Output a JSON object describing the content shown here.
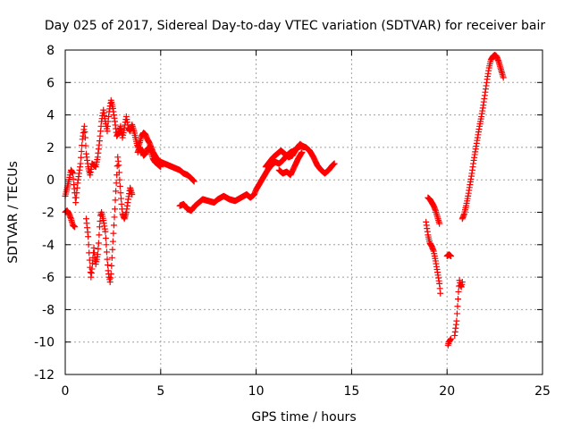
{
  "chart_data": {
    "type": "scatter",
    "title": "Day 025 of 2017, Sidereal Day-to-day VTEC variation (SDTVAR) for receiver bair",
    "xlabel": "GPS time / hours",
    "ylabel": "SDTVAR / TECUs",
    "xlim": [
      0,
      25
    ],
    "ylim": [
      -12,
      8
    ],
    "xticks": [
      0,
      5,
      10,
      15,
      20,
      25
    ],
    "yticks": [
      -12,
      -10,
      -8,
      -6,
      -4,
      -2,
      0,
      2,
      4,
      6,
      8
    ],
    "grid": true,
    "legend": "none",
    "marker": "plus",
    "series": [
      {
        "color": "#ff0000",
        "segments": [
          [
            [
              0.0,
              -1.0
            ],
            [
              0.1,
              -0.5
            ],
            [
              0.2,
              0.0
            ],
            [
              0.3,
              0.6
            ],
            [
              0.4,
              0.4
            ],
            [
              0.45,
              -0.3
            ],
            [
              0.5,
              -0.8
            ],
            [
              0.55,
              -1.4
            ],
            [
              0.6,
              -0.8
            ],
            [
              0.65,
              -0.2
            ],
            [
              0.7,
              0.2
            ],
            [
              0.8,
              1.0
            ],
            [
              0.9,
              2.5
            ],
            [
              1.0,
              3.3
            ],
            [
              1.05,
              2.6
            ],
            [
              1.1,
              1.6
            ],
            [
              1.2,
              0.8
            ],
            [
              1.3,
              0.3
            ],
            [
              1.4,
              1.0
            ],
            [
              1.5,
              0.9
            ],
            [
              1.6,
              0.8
            ],
            [
              1.7,
              1.4
            ],
            [
              1.8,
              2.4
            ],
            [
              1.9,
              3.6
            ],
            [
              2.0,
              4.3
            ],
            [
              2.1,
              3.6
            ],
            [
              2.2,
              3.0
            ],
            [
              2.3,
              4.2
            ],
            [
              2.4,
              4.9
            ],
            [
              2.5,
              4.4
            ],
            [
              2.6,
              3.6
            ],
            [
              2.7,
              2.7
            ],
            [
              2.8,
              2.9
            ],
            [
              2.9,
              3.3
            ],
            [
              3.0,
              2.6
            ],
            [
              3.1,
              3.2
            ],
            [
              3.2,
              3.9
            ],
            [
              3.3,
              3.2
            ],
            [
              3.4,
              3.0
            ],
            [
              3.5,
              3.4
            ],
            [
              3.6,
              3.0
            ],
            [
              3.7,
              2.5
            ],
            [
              3.8,
              2.0
            ],
            [
              3.9,
              2.3
            ],
            [
              4.0,
              2.7
            ],
            [
              4.1,
              2.9
            ],
            [
              4.2,
              2.8
            ],
            [
              4.3,
              2.5
            ],
            [
              4.4,
              2.3
            ],
            [
              4.5,
              2.0
            ],
            [
              4.6,
              1.7
            ],
            [
              4.7,
              1.5
            ],
            [
              4.8,
              1.3
            ],
            [
              5.0,
              1.1
            ],
            [
              5.2,
              1.0
            ],
            [
              5.4,
              0.9
            ],
            [
              5.6,
              0.8
            ],
            [
              5.8,
              0.7
            ],
            [
              6.0,
              0.6
            ],
            [
              6.2,
              0.4
            ],
            [
              6.4,
              0.3
            ],
            [
              6.6,
              0.1
            ],
            [
              6.75,
              -0.1
            ]
          ],
          [
            [
              0.0,
              -2.0
            ],
            [
              0.1,
              -1.9
            ],
            [
              0.2,
              -2.1
            ],
            [
              0.3,
              -2.4
            ],
            [
              0.4,
              -2.8
            ],
            [
              0.5,
              -2.9
            ]
          ],
          [
            [
              1.1,
              -2.4
            ],
            [
              1.2,
              -3.5
            ],
            [
              1.25,
              -4.5
            ],
            [
              1.3,
              -5.4
            ],
            [
              1.35,
              -6.0
            ],
            [
              1.4,
              -5.5
            ],
            [
              1.45,
              -4.8
            ],
            [
              1.5,
              -4.2
            ],
            [
              1.55,
              -4.8
            ],
            [
              1.6,
              -5.2
            ],
            [
              1.7,
              -4.6
            ],
            [
              1.75,
              -3.9
            ],
            [
              1.8,
              -2.9
            ],
            [
              1.85,
              -2.2
            ],
            [
              1.9,
              -2.0
            ],
            [
              2.0,
              -2.5
            ],
            [
              2.1,
              -3.2
            ],
            [
              2.15,
              -4.0
            ],
            [
              2.2,
              -4.9
            ],
            [
              2.25,
              -5.6
            ],
            [
              2.3,
              -6.0
            ],
            [
              2.35,
              -6.3
            ],
            [
              2.4,
              -5.8
            ],
            [
              2.45,
              -4.8
            ],
            [
              2.5,
              -3.8
            ],
            [
              2.55,
              -2.8
            ],
            [
              2.6,
              -1.8
            ],
            [
              2.65,
              -0.7
            ],
            [
              2.7,
              0.3
            ],
            [
              2.75,
              1.4
            ],
            [
              2.8,
              0.9
            ],
            [
              2.85,
              0.0
            ],
            [
              2.9,
              -0.8
            ],
            [
              2.95,
              -1.5
            ],
            [
              3.0,
              -2.1
            ],
            [
              3.1,
              -2.4
            ],
            [
              3.2,
              -2.0
            ],
            [
              3.3,
              -1.2
            ],
            [
              3.4,
              -0.5
            ],
            [
              3.5,
              -0.9
            ]
          ],
          [
            [
              3.8,
              1.7
            ],
            [
              3.9,
              2.0
            ],
            [
              4.0,
              1.8
            ],
            [
              4.1,
              1.5
            ],
            [
              4.2,
              1.6
            ],
            [
              4.3,
              1.9
            ],
            [
              4.4,
              2.0
            ],
            [
              4.5,
              1.7
            ],
            [
              4.6,
              1.3
            ],
            [
              4.7,
              1.1
            ],
            [
              4.8,
              1.0
            ],
            [
              4.9,
              0.9
            ],
            [
              5.0,
              0.8
            ]
          ],
          [
            [
              6.0,
              -1.6
            ],
            [
              6.2,
              -1.5
            ],
            [
              6.4,
              -1.8
            ],
            [
              6.6,
              -1.9
            ],
            [
              6.8,
              -1.6
            ],
            [
              7.0,
              -1.4
            ],
            [
              7.2,
              -1.2
            ],
            [
              7.5,
              -1.3
            ],
            [
              7.8,
              -1.4
            ],
            [
              8.0,
              -1.2
            ],
            [
              8.3,
              -1.0
            ],
            [
              8.6,
              -1.2
            ],
            [
              8.9,
              -1.3
            ],
            [
              9.2,
              -1.1
            ],
            [
              9.5,
              -0.9
            ],
            [
              9.7,
              -1.1
            ],
            [
              9.9,
              -0.9
            ],
            [
              10.0,
              -0.6
            ],
            [
              10.2,
              -0.2
            ],
            [
              10.4,
              0.2
            ],
            [
              10.6,
              0.6
            ],
            [
              10.8,
              0.9
            ],
            [
              11.0,
              1.1
            ],
            [
              11.2,
              1.0
            ],
            [
              11.4,
              1.2
            ],
            [
              11.6,
              1.5
            ],
            [
              11.8,
              1.7
            ],
            [
              12.0,
              1.8
            ],
            [
              12.2,
              2.0
            ],
            [
              12.4,
              2.1
            ],
            [
              12.6,
              2.0
            ],
            [
              12.8,
              1.8
            ],
            [
              13.0,
              1.4
            ],
            [
              13.2,
              0.9
            ],
            [
              13.4,
              0.6
            ],
            [
              13.6,
              0.4
            ],
            [
              13.8,
              0.6
            ],
            [
              14.0,
              0.9
            ],
            [
              14.1,
              1.0
            ]
          ],
          [
            [
              10.5,
              0.8
            ],
            [
              10.7,
              1.1
            ],
            [
              10.9,
              1.4
            ],
            [
              11.1,
              1.6
            ],
            [
              11.3,
              1.8
            ],
            [
              11.5,
              1.6
            ],
            [
              11.7,
              1.4
            ],
            [
              11.9,
              1.5
            ],
            [
              12.1,
              1.9
            ],
            [
              12.3,
              2.2
            ],
            [
              12.5,
              2.0
            ]
          ],
          [
            [
              11.2,
              0.6
            ],
            [
              11.4,
              0.4
            ],
            [
              11.6,
              0.5
            ],
            [
              11.8,
              0.3
            ],
            [
              12.0,
              0.8
            ],
            [
              12.2,
              1.3
            ],
            [
              12.4,
              1.7
            ]
          ],
          [
            [
              18.9,
              -2.6
            ],
            [
              19.0,
              -3.4
            ],
            [
              19.1,
              -3.9
            ],
            [
              19.2,
              -4.1
            ],
            [
              19.3,
              -4.4
            ],
            [
              19.4,
              -5.0
            ],
            [
              19.5,
              -5.7
            ],
            [
              19.6,
              -6.4
            ],
            [
              19.65,
              -7.0
            ]
          ],
          [
            [
              19.0,
              -1.1
            ],
            [
              19.1,
              -1.2
            ],
            [
              19.2,
              -1.4
            ],
            [
              19.3,
              -1.6
            ],
            [
              19.4,
              -1.9
            ],
            [
              19.5,
              -2.3
            ],
            [
              19.6,
              -2.7
            ]
          ],
          [
            [
              20.05,
              -10.2
            ],
            [
              20.1,
              -10.0
            ],
            [
              20.2,
              -9.8
            ]
          ],
          [
            [
              20.0,
              -4.7
            ],
            [
              20.1,
              -4.6
            ],
            [
              20.2,
              -4.7
            ]
          ],
          [
            [
              20.4,
              -9.6
            ],
            [
              20.5,
              -8.7
            ],
            [
              20.55,
              -7.8
            ],
            [
              20.6,
              -6.9
            ],
            [
              20.65,
              -6.2
            ],
            [
              20.7,
              -6.5
            ],
            [
              20.75,
              -6.6
            ],
            [
              20.8,
              -6.3
            ]
          ],
          [
            [
              20.8,
              -2.4
            ],
            [
              20.9,
              -2.1
            ],
            [
              21.0,
              -1.6
            ],
            [
              21.1,
              -1.0
            ],
            [
              21.2,
              -0.3
            ],
            [
              21.3,
              0.4
            ],
            [
              21.4,
              1.2
            ],
            [
              21.5,
              1.9
            ],
            [
              21.6,
              2.6
            ],
            [
              21.7,
              3.3
            ],
            [
              21.8,
              3.9
            ],
            [
              21.9,
              4.6
            ],
            [
              22.0,
              5.4
            ],
            [
              22.1,
              6.2
            ],
            [
              22.2,
              6.9
            ],
            [
              22.3,
              7.4
            ],
            [
              22.4,
              7.6
            ],
            [
              22.5,
              7.7
            ],
            [
              22.6,
              7.6
            ],
            [
              22.7,
              7.3
            ],
            [
              22.8,
              6.9
            ],
            [
              22.9,
              6.5
            ],
            [
              22.95,
              6.3
            ]
          ]
        ]
      }
    ]
  }
}
